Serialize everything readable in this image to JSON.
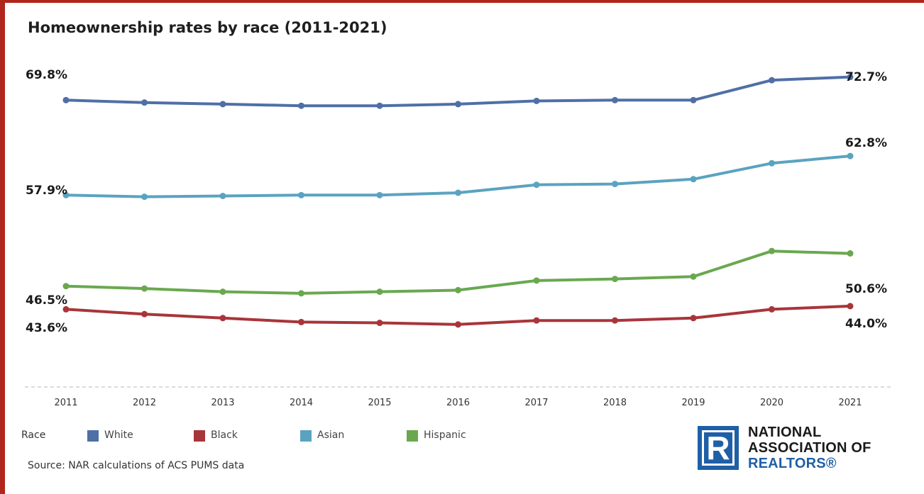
{
  "chart_data": {
    "type": "line",
    "title": "Homeownership rates by race (2011-2021)",
    "x": [
      "2011",
      "2012",
      "2013",
      "2014",
      "2015",
      "2016",
      "2017",
      "2018",
      "2019",
      "2020",
      "2021"
    ],
    "ylim": [
      36,
      74
    ],
    "grid": false,
    "legend_title": "Race",
    "legend_position": "bottom-left",
    "series": [
      {
        "name": "White",
        "color": "#4f6fa6",
        "values": [
          69.8,
          69.5,
          69.3,
          69.1,
          69.1,
          69.3,
          69.7,
          69.8,
          69.8,
          72.3,
          72.7
        ],
        "start_label": "69.8%",
        "end_label": "72.7%"
      },
      {
        "name": "Black",
        "color": "#a8353a",
        "values": [
          43.6,
          43.0,
          42.5,
          42.0,
          41.9,
          41.7,
          42.2,
          42.2,
          42.5,
          43.6,
          44.0
        ],
        "start_label": "43.6%",
        "end_label": "44.0%"
      },
      {
        "name": "Asian",
        "color": "#5aa3c0",
        "values": [
          57.9,
          57.7,
          57.8,
          57.9,
          57.9,
          58.2,
          59.2,
          59.3,
          59.9,
          61.9,
          62.8
        ],
        "start_label": "57.9%",
        "end_label": "62.8%"
      },
      {
        "name": "Hispanic",
        "color": "#6aa84f",
        "values": [
          46.5,
          46.2,
          45.8,
          45.6,
          45.8,
          46.0,
          47.2,
          47.4,
          47.7,
          50.9,
          50.6
        ],
        "start_label": "46.5%",
        "end_label": "50.6%"
      }
    ]
  },
  "source": "Source: NAR calculations of ACS PUMS data",
  "logo": {
    "letter": "R",
    "line1": "NATIONAL",
    "line2": "ASSOCIATION OF",
    "line3": "REALTORS®"
  }
}
